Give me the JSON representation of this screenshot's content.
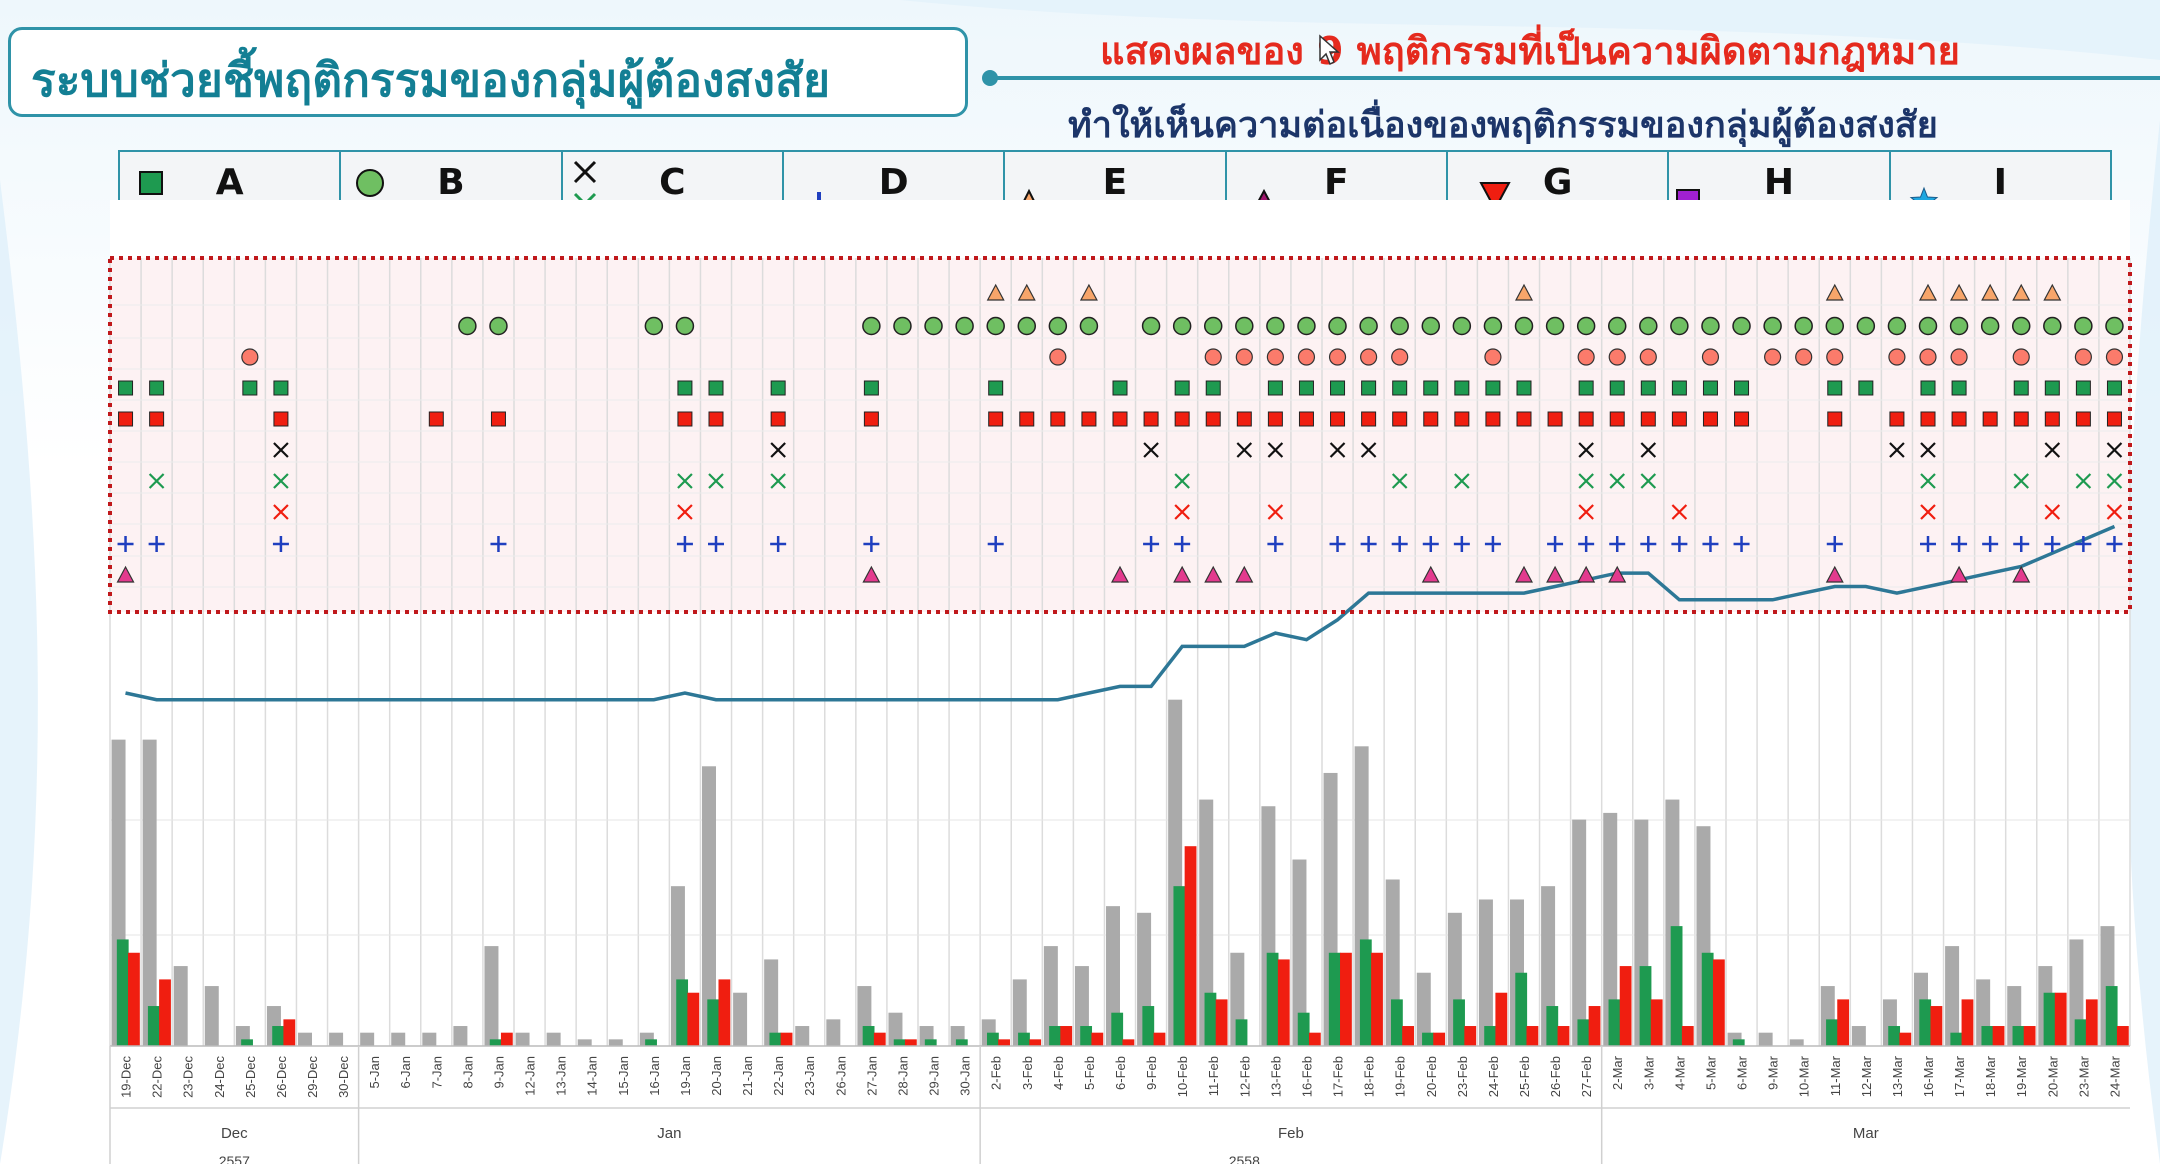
{
  "header": {
    "title": "ระบบช่วยชี้พฤติกรรมของกลุ่มผู้ต้องสงสัย",
    "subtitle_line1": "แสดงผลของ 9 พฤติกรรมที่เป็นความผิดตามกฎหมาย",
    "subtitle_line2": "ทำให้เห็นความต่อเนื่องของพฤติกรรมของกลุ่มผู้ต้องสงสัย"
  },
  "legend": [
    {
      "label": "A",
      "symbols": [
        "square-green-icon",
        "square-red-icon"
      ]
    },
    {
      "label": "B",
      "symbols": [
        "circle-green-icon",
        "circle-red-icon"
      ]
    },
    {
      "label": "C",
      "symbols": [
        "x-black-icon",
        "x-green-icon",
        "x-red-icon"
      ]
    },
    {
      "label": "D",
      "symbols": [
        "plus-blue-icon"
      ]
    },
    {
      "label": "E",
      "symbols": [
        "triangle-orange-icon"
      ]
    },
    {
      "label": "F",
      "symbols": [
        "triangle-purple-icon"
      ]
    },
    {
      "label": "G",
      "symbols": [
        "triangle-down-red-icon"
      ]
    },
    {
      "label": "H",
      "symbols": [
        "square-purple-icon"
      ]
    },
    {
      "label": "I",
      "symbols": [
        "star-blue-icon"
      ]
    }
  ],
  "colors": {
    "green": "#1e9a50",
    "red": "#f01e10",
    "gray": "#aaaaaa",
    "line": "#2d7796",
    "blue": "#1f3fbf",
    "orange": "#f7a56a",
    "magenta": "#e33a8e",
    "salmon": "#fb7b6b",
    "accent": "#2f93a8",
    "dotted_border": "#c0181b"
  },
  "chart_data": {
    "type": "bar",
    "dates": [
      "19-Dec",
      "22-Dec",
      "23-Dec",
      "24-Dec",
      "25-Dec",
      "26-Dec",
      "29-Dec",
      "30-Dec",
      "5-Jan",
      "6-Jan",
      "7-Jan",
      "8-Jan",
      "9-Jan",
      "12-Jan",
      "13-Jan",
      "14-Jan",
      "15-Jan",
      "16-Jan",
      "19-Jan",
      "20-Jan",
      "21-Jan",
      "22-Jan",
      "23-Jan",
      "26-Jan",
      "27-Jan",
      "28-Jan",
      "29-Jan",
      "30-Jan",
      "2-Feb",
      "3-Feb",
      "4-Feb",
      "5-Feb",
      "6-Feb",
      "9-Feb",
      "10-Feb",
      "11-Feb",
      "12-Feb",
      "13-Feb",
      "16-Feb",
      "17-Feb",
      "18-Feb",
      "19-Feb",
      "20-Feb",
      "23-Feb",
      "24-Feb",
      "25-Feb",
      "26-Feb",
      "27-Feb",
      "2-Mar",
      "3-Mar",
      "4-Mar",
      "5-Mar",
      "6-Mar",
      "9-Mar",
      "10-Mar",
      "11-Mar",
      "12-Mar",
      "13-Mar",
      "16-Mar",
      "17-Mar",
      "18-Mar",
      "19-Mar",
      "20-Mar",
      "23-Mar",
      "24-Mar"
    ],
    "months": [
      {
        "label": "Dec",
        "start": 0,
        "end": 7
      },
      {
        "label": "Jan",
        "start": 8,
        "end": 27
      },
      {
        "label": "Feb",
        "start": 28,
        "end": 47
      },
      {
        "label": "Mar",
        "start": 48,
        "end": 64
      }
    ],
    "years": [
      {
        "label": "2557",
        "start": 0,
        "end": 7
      },
      {
        "label": "2558",
        "start": 8,
        "end": 64
      }
    ],
    "ylim": [
      0,
      100
    ],
    "series": [
      {
        "values": [
          46,
          46,
          12,
          9,
          3,
          6,
          2,
          2,
          2,
          2,
          2,
          3,
          15,
          2,
          2,
          1,
          1,
          2,
          24,
          42,
          8,
          13,
          3,
          4,
          9,
          5,
          3,
          3,
          4,
          10,
          15,
          12,
          21,
          20,
          52,
          37,
          14,
          36,
          28,
          41,
          45,
          25,
          11,
          20,
          22,
          22,
          24,
          34,
          35,
          34,
          37,
          33,
          2,
          2,
          1,
          9,
          3,
          7,
          11,
          15,
          10,
          9,
          12,
          16,
          18
        ]
      },
      {
        "values": [
          16,
          6,
          0,
          0,
          1,
          3,
          0,
          0,
          0,
          0,
          0,
          0,
          1,
          0,
          0,
          0,
          0,
          1,
          10,
          7,
          0,
          2,
          0,
          0,
          3,
          1,
          1,
          1,
          2,
          2,
          3,
          3,
          5,
          6,
          24,
          8,
          4,
          14,
          5,
          14,
          16,
          7,
          2,
          7,
          3,
          11,
          6,
          4,
          7,
          12,
          18,
          14,
          1,
          0,
          0,
          4,
          0,
          3,
          7,
          2,
          3,
          3,
          8,
          4,
          9
        ]
      },
      {
        "values": [
          14,
          10,
          0,
          0,
          0,
          4,
          0,
          0,
          0,
          0,
          0,
          0,
          2,
          0,
          0,
          0,
          0,
          0,
          8,
          10,
          0,
          2,
          0,
          0,
          2,
          1,
          0,
          0,
          1,
          1,
          3,
          2,
          1,
          2,
          30,
          7,
          0,
          13,
          2,
          14,
          14,
          3,
          2,
          3,
          8,
          3,
          3,
          6,
          12,
          7,
          3,
          13,
          0,
          0,
          0,
          7,
          0,
          2,
          6,
          7,
          3,
          3,
          8,
          7,
          3
        ]
      },
      {
        "values": [
          53,
          52,
          52,
          52,
          52,
          52,
          52,
          52,
          52,
          52,
          52,
          52,
          52,
          52,
          52,
          52,
          52,
          52,
          53,
          52,
          52,
          52,
          52,
          52,
          52,
          52,
          52,
          52,
          52,
          52,
          52,
          53,
          54,
          54,
          60,
          60,
          60,
          62,
          61,
          64,
          68,
          68,
          68,
          68,
          68,
          68,
          69,
          70,
          71,
          71,
          67,
          67,
          67,
          67,
          68,
          69,
          69,
          68,
          69,
          70,
          71,
          72,
          74,
          76,
          78
        ]
      }
    ],
    "markers": {
      "E": [
        28,
        29,
        31,
        45,
        55,
        58,
        59,
        60,
        61,
        62
      ],
      "B_green": [
        11,
        12,
        17,
        18,
        24,
        25,
        26,
        27,
        28,
        29,
        30,
        31,
        33,
        34,
        35,
        36,
        37,
        38,
        39,
        40,
        41,
        42,
        43,
        44,
        45,
        46,
        47,
        48,
        49,
        50,
        51,
        52,
        53,
        54,
        55,
        56,
        57,
        58,
        59,
        60,
        61,
        62,
        63,
        64
      ],
      "B_red": [
        4,
        30,
        35,
        36,
        37,
        38,
        39,
        40,
        41,
        44,
        47,
        48,
        49,
        51,
        53,
        54,
        55,
        57,
        58,
        59,
        61,
        63,
        64
      ],
      "A_green": [
        0,
        1,
        4,
        5,
        18,
        19,
        21,
        24,
        28,
        32,
        34,
        35,
        37,
        38,
        39,
        40,
        41,
        42,
        43,
        44,
        45,
        47,
        48,
        49,
        50,
        51,
        52,
        55,
        56,
        58,
        59,
        61,
        62,
        63,
        64
      ],
      "A_red": [
        0,
        1,
        5,
        10,
        12,
        18,
        19,
        21,
        24,
        28,
        29,
        30,
        31,
        32,
        33,
        34,
        35,
        36,
        37,
        38,
        39,
        40,
        41,
        42,
        43,
        44,
        45,
        46,
        47,
        48,
        49,
        50,
        51,
        52,
        55,
        57,
        58,
        59,
        60,
        61,
        62,
        63,
        64
      ],
      "C_black": [
        5,
        21,
        33,
        36,
        37,
        39,
        40,
        47,
        49,
        57,
        58,
        62,
        64
      ],
      "C_green": [
        1,
        5,
        18,
        19,
        21,
        34,
        41,
        43,
        47,
        48,
        49,
        58,
        61,
        63,
        64
      ],
      "C_red": [
        5,
        18,
        34,
        37,
        47,
        50,
        58,
        62,
        64
      ],
      "D": [
        0,
        1,
        5,
        12,
        18,
        19,
        21,
        24,
        28,
        33,
        34,
        37,
        39,
        40,
        41,
        42,
        43,
        44,
        46,
        47,
        48,
        49,
        50,
        51,
        52,
        55,
        58,
        59,
        60,
        61,
        62,
        63,
        64
      ],
      "F": [
        0,
        24,
        32,
        34,
        35,
        36,
        42,
        45,
        46,
        47,
        48,
        55,
        59,
        61
      ]
    }
  }
}
